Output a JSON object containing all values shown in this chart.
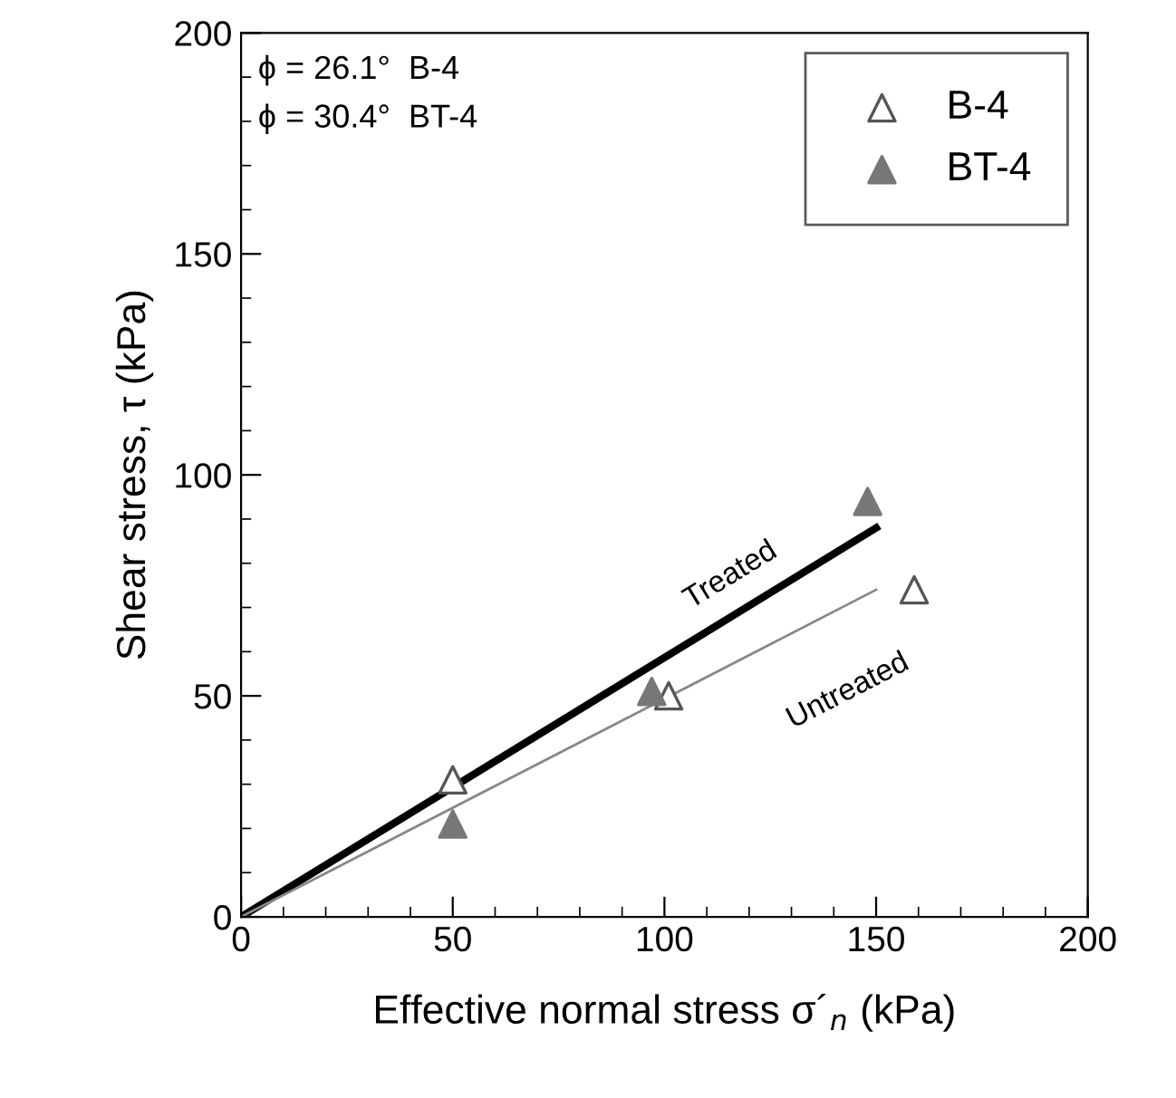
{
  "chart_data": {
    "type": "scatter",
    "xlabel": "Effective normal stress σ´$_{n}$ (kPa)",
    "ylabel": "Shear stress, τ (kPa)",
    "xlim": [
      0,
      200
    ],
    "ylim": [
      0,
      200
    ],
    "xticks": [
      0,
      50,
      100,
      150,
      200
    ],
    "yticks": [
      0,
      50,
      100,
      150,
      200
    ],
    "grid": false,
    "legend": "top right",
    "marker": "triangle",
    "series": [
      {
        "name": "B-4",
        "color": "#555555",
        "x": [
          50,
          101,
          159
        ],
        "values": [
          31,
          50,
          74
        ]
      },
      {
        "name": "BT-4",
        "color": "#777777",
        "x": [
          50,
          97,
          148
        ],
        "values": [
          21,
          51,
          94
        ]
      },
      {
        "name": "Treated",
        "type": "line",
        "marker": "none",
        "color": "#000000",
        "x": [
          0,
          150
        ],
        "values": [
          0,
          88
        ]
      },
      {
        "name": "Untreated",
        "type": "line",
        "marker": "none",
        "color": "#888888",
        "x": [
          0,
          150
        ],
        "values": [
          0,
          74
        ]
      }
    ],
    "annotations": [
      "ϕ = 26.1°  B-4",
      "ϕ = 30.4°  BT-4"
    ]
  }
}
